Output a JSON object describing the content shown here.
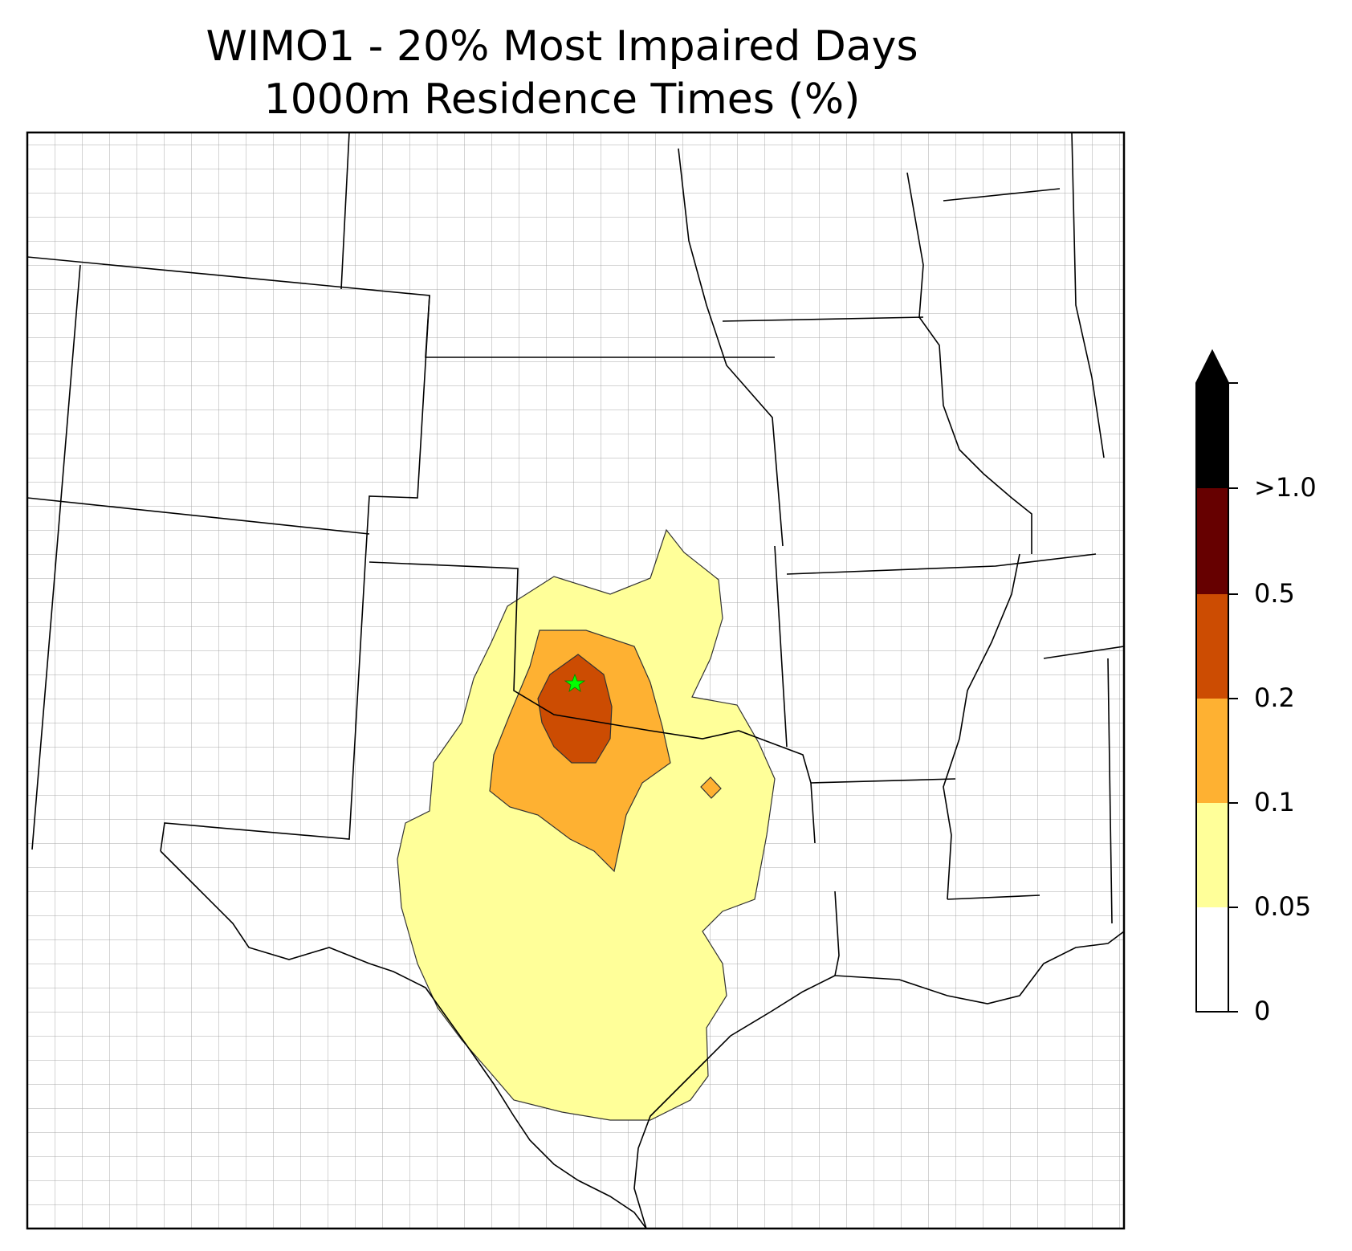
{
  "title": "WIMO1 - 20% Most Impaired Days",
  "subtitle": "1000m Residence Times (%)",
  "colorbar": {
    "ticks": [
      "0",
      "0.05",
      "0.1",
      "0.2",
      "0.5",
      ">1.0"
    ],
    "bins": [
      {
        "range": "0-0.05",
        "color": "#ffffff"
      },
      {
        "range": "0.05-0.1",
        "color": "#ffff99"
      },
      {
        "range": "0.1-0.2",
        "color": "#feb132"
      },
      {
        "range": "0.2-0.5",
        "color": "#cc4c02"
      },
      {
        "range": "0.5-1.0",
        "color": "#660000"
      },
      {
        "range": ">1.0",
        "color": "#000000"
      }
    ],
    "extend": "max"
  },
  "map": {
    "region": "South-central United States",
    "site_marker": {
      "symbol": "star",
      "color": "#00ff00"
    },
    "state_border_color": "#000000",
    "county_border_color": "#a0a0a0"
  }
}
